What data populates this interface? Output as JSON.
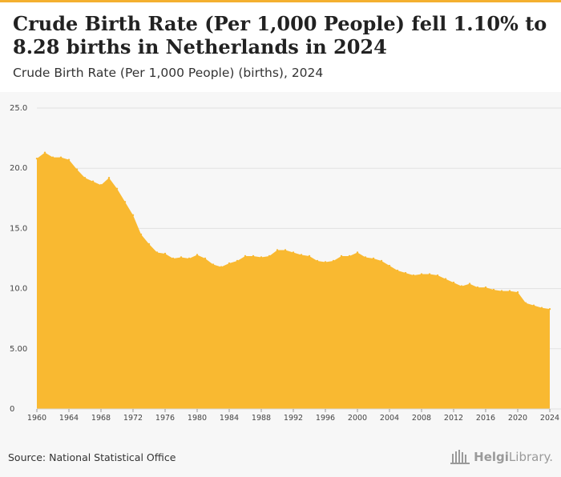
{
  "header": {
    "title": "Crude Birth Rate (Per 1,000 People) fell 1.10% to 8.28 births in Netherlands in 2024",
    "subtitle": "Crude Birth Rate (Per 1,000 People) (births), 2024"
  },
  "footer": {
    "source": "Source: National Statistical Office",
    "brand_bold": "Helgi",
    "brand_regular": "Library."
  },
  "colors": {
    "area_fill": "#f9b931",
    "accent_bar": "#f4b02f",
    "gridline": "#e2e2e2",
    "background": "#f7f7f7"
  },
  "chart_data": {
    "type": "area",
    "title": "Crude Birth Rate (Per 1,000 People) fell 1.10% to 8.28 births in Netherlands in 2024",
    "xlabel": "",
    "ylabel": "",
    "grid": true,
    "xlim": [
      1960,
      2024
    ],
    "ylim": [
      0,
      25
    ],
    "x_ticks": [
      "1960",
      "1964",
      "1968",
      "1972",
      "1976",
      "1980",
      "1984",
      "1988",
      "1992",
      "1996",
      "2000",
      "2004",
      "2008",
      "2012",
      "2016",
      "2020",
      "2024"
    ],
    "y_ticks": [
      "0",
      "5.00",
      "10.0",
      "15.0",
      "20.0",
      "25.0"
    ],
    "x": [
      1960,
      1961,
      1962,
      1963,
      1964,
      1965,
      1966,
      1967,
      1968,
      1969,
      1970,
      1971,
      1972,
      1973,
      1974,
      1975,
      1976,
      1977,
      1978,
      1979,
      1980,
      1981,
      1982,
      1983,
      1984,
      1985,
      1986,
      1987,
      1988,
      1989,
      1990,
      1991,
      1992,
      1993,
      1994,
      1995,
      1996,
      1997,
      1998,
      1999,
      2000,
      2001,
      2002,
      2003,
      2004,
      2005,
      2006,
      2007,
      2008,
      2009,
      2010,
      2011,
      2012,
      2013,
      2014,
      2015,
      2016,
      2017,
      2018,
      2019,
      2020,
      2021,
      2022,
      2023,
      2024
    ],
    "series": [
      {
        "values": [
          20.8,
          21.3,
          20.9,
          20.9,
          20.7,
          19.9,
          19.2,
          18.9,
          18.6,
          19.2,
          18.3,
          17.2,
          16.1,
          14.5,
          13.7,
          13.0,
          12.9,
          12.5,
          12.6,
          12.5,
          12.8,
          12.5,
          12.0,
          11.8,
          12.1,
          12.3,
          12.7,
          12.7,
          12.6,
          12.7,
          13.2,
          13.2,
          13.0,
          12.8,
          12.7,
          12.3,
          12.2,
          12.3,
          12.7,
          12.7,
          13.0,
          12.6,
          12.5,
          12.3,
          11.9,
          11.5,
          11.3,
          11.1,
          11.2,
          11.2,
          11.1,
          10.8,
          10.5,
          10.2,
          10.4,
          10.1,
          10.1,
          9.9,
          9.8,
          9.8,
          9.7,
          8.8,
          8.6,
          8.4,
          8.3
        ]
      }
    ]
  }
}
